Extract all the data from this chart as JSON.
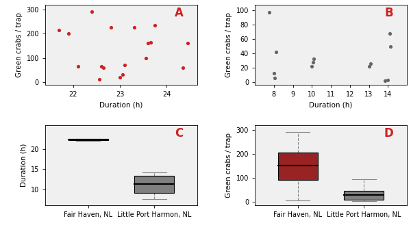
{
  "A_x": [
    21.7,
    21.9,
    22.1,
    22.4,
    22.55,
    22.6,
    22.65,
    22.8,
    23.0,
    23.05,
    23.1,
    23.3,
    23.55,
    23.6,
    23.65,
    23.75,
    24.35,
    24.45
  ],
  "A_y": [
    215,
    200,
    65,
    290,
    10,
    65,
    60,
    225,
    20,
    30,
    70,
    225,
    100,
    160,
    165,
    235,
    60,
    160
  ],
  "B_x": [
    7.75,
    8.0,
    8.05,
    8.1,
    10.0,
    10.05,
    10.1,
    13.0,
    13.1,
    13.85,
    14.0,
    14.1,
    14.15
  ],
  "B_y": [
    97,
    12,
    6,
    42,
    22,
    28,
    32,
    22,
    26,
    2,
    3,
    68,
    50
  ],
  "C_FH_data": [
    21.8,
    22.0,
    22.1,
    22.2,
    22.25,
    22.3,
    22.3,
    22.35,
    22.4,
    22.4,
    22.4,
    22.45,
    22.5,
    22.5,
    22.5,
    22.6,
    22.6,
    23.4
  ],
  "C_LPH_data": [
    7.5,
    8.0,
    8.5,
    9.0,
    9.5,
    10.5,
    11.0,
    11.5,
    12.5,
    13.0,
    13.5,
    14.0,
    14.0,
    14.2
  ],
  "D_FH_data": [
    5,
    15,
    60,
    80,
    100,
    120,
    130,
    150,
    160,
    175,
    200,
    210,
    225,
    270,
    290
  ],
  "D_LPH_data": [
    2,
    3,
    5,
    10,
    22,
    26,
    30,
    35,
    42,
    50,
    68,
    95
  ],
  "scatter_color_A": "#cc2222",
  "scatter_color_B": "#666666",
  "box_color_FH": "#992222",
  "box_color_LPH": "#808080",
  "label_color": "#cc2222",
  "bg_color": "#f0f0f0"
}
